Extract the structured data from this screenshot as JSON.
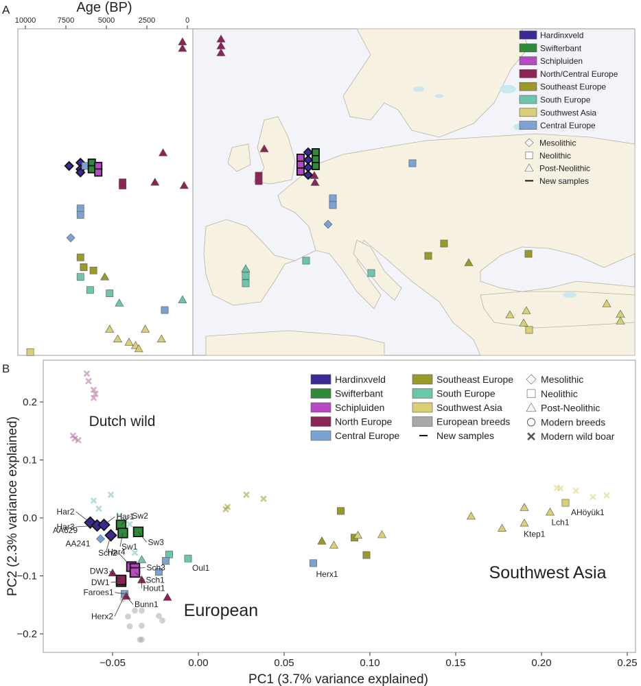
{
  "panels": {
    "a": "A",
    "b": "B"
  },
  "age_axis": {
    "title": "Age (BP)",
    "ticks": [
      10000,
      7500,
      5000,
      2500,
      0
    ]
  },
  "colors": {
    "Hardinxveld": "#3b2a96",
    "Swifterbant": "#2f8a3a",
    "Schipluiden": "#b54ac2",
    "North/Central Europe": "#8d2456",
    "North Europe": "#8d2456",
    "Southeast Europe": "#9a9a2a",
    "South Europe": "#6cc6ac",
    "Southwest Asia": "#d9cf74",
    "Central Europe": "#7aa3d4",
    "European breeds": "#a9a9a9",
    "Dutch wild": "#b06a9a",
    "land": "#f6f1e1",
    "sea": "#f2f4fa",
    "water": "#c8e8f0",
    "border": "#b8b2a3"
  },
  "legend_a": {
    "groups": [
      "Hardinxveld",
      "Swifterbant",
      "Schipluiden",
      "North/Central Europe",
      "Southeast Europe",
      "South Europe",
      "Southwest Asia",
      "Central Europe"
    ],
    "periods": [
      "Mesolithic",
      "Neolithic",
      "Post-Neolithic",
      "New samples"
    ]
  },
  "legend_b": {
    "groups_col1": [
      "Hardinxveld",
      "Swifterbant",
      "Schipluiden",
      "North Europe",
      "Central Europe"
    ],
    "groups_col2": [
      "Southeast Europe",
      "South Europe",
      "Southwest Asia",
      "European breeds",
      "New samples"
    ],
    "periods": [
      "Mesolithic",
      "Neolithic",
      "Post-Neolithic",
      "Modern breeds",
      "Modern wild boar"
    ]
  },
  "region_labels": [
    "Dutch wild",
    "European",
    "Southwest Asia"
  ],
  "chart_data": [
    {
      "type": "scatter",
      "title": "",
      "xlabel": "Age (BP)",
      "xlim": [
        10000,
        0
      ],
      "x_ticks": [
        10000,
        7500,
        5000,
        2500,
        0
      ],
      "points": [
        {
          "age": 7300,
          "group": "Hardinxveld",
          "period": "Mesolithic",
          "row": 0.42,
          "new": true
        },
        {
          "age": 6600,
          "group": "Hardinxveld",
          "period": "Mesolithic",
          "row": 0.41,
          "new": true
        },
        {
          "age": 6600,
          "group": "Hardinxveld",
          "period": "Mesolithic",
          "row": 0.43,
          "new": true
        },
        {
          "age": 6600,
          "group": "Hardinxveld",
          "period": "Mesolithic",
          "row": 0.44,
          "new": true
        },
        {
          "age": 6300,
          "group": "Central Europe",
          "period": "Neolithic",
          "row": 0.42
        },
        {
          "age": 5900,
          "group": "Swifterbant",
          "period": "Neolithic",
          "row": 0.41,
          "new": true
        },
        {
          "age": 5900,
          "group": "Swifterbant",
          "period": "Neolithic",
          "row": 0.43,
          "new": true
        },
        {
          "age": 5500,
          "group": "Schipluiden",
          "period": "Neolithic",
          "row": 0.42,
          "new": true
        },
        {
          "age": 5500,
          "group": "Schipluiden",
          "period": "Neolithic",
          "row": 0.44,
          "new": true
        },
        {
          "age": 4000,
          "group": "North/Central Europe",
          "period": "Neolithic",
          "row": 0.47
        },
        {
          "age": 4000,
          "group": "North/Central Europe",
          "period": "Neolithic",
          "row": 0.48
        },
        {
          "age": 1500,
          "group": "North/Central Europe",
          "period": "Post-Neolithic",
          "row": 0.38
        },
        {
          "age": 2000,
          "group": "North/Central Europe",
          "period": "Post-Neolithic",
          "row": 0.47
        },
        {
          "age": 200,
          "group": "North/Central Europe",
          "period": "Post-Neolithic",
          "row": 0.48
        },
        {
          "age": 300,
          "group": "North/Central Europe",
          "period": "Post-Neolithic",
          "row": 0.04
        },
        {
          "age": 300,
          "group": "North/Central Europe",
          "period": "Post-Neolithic",
          "row": 0.06
        },
        {
          "age": 6600,
          "group": "Central Europe",
          "period": "Neolithic",
          "row": 0.55
        },
        {
          "age": 6600,
          "group": "Central Europe",
          "period": "Neolithic",
          "row": 0.57
        },
        {
          "age": 7200,
          "group": "Central Europe",
          "period": "Mesolithic",
          "row": 0.64
        },
        {
          "age": 6600,
          "group": "Southeast Europe",
          "period": "Neolithic",
          "row": 0.7
        },
        {
          "age": 6400,
          "group": "Southeast Europe",
          "period": "Neolithic",
          "row": 0.73
        },
        {
          "age": 5800,
          "group": "Southeast Europe",
          "period": "Neolithic",
          "row": 0.74
        },
        {
          "age": 5100,
          "group": "Southeast Europe",
          "period": "Post-Neolithic",
          "row": 0.76
        },
        {
          "age": 6600,
          "group": "South Europe",
          "period": "Neolithic",
          "row": 0.76
        },
        {
          "age": 6000,
          "group": "South Europe",
          "period": "Neolithic",
          "row": 0.8
        },
        {
          "age": 4800,
          "group": "South Europe",
          "period": "Neolithic",
          "row": 0.81
        },
        {
          "age": 4200,
          "group": "South Europe",
          "period": "Post-Neolithic",
          "row": 0.84
        },
        {
          "age": 300,
          "group": "South Europe",
          "period": "Post-Neolithic",
          "row": 0.83
        },
        {
          "age": 4800,
          "group": "Southwest Asia",
          "period": "Post-Neolithic",
          "row": 0.92
        },
        {
          "age": 4300,
          "group": "Southwest Asia",
          "period": "Post-Neolithic",
          "row": 0.95
        },
        {
          "age": 3600,
          "group": "Southwest Asia",
          "period": "Post-Neolithic",
          "row": 0.96
        },
        {
          "age": 3200,
          "group": "Southwest Asia",
          "period": "Post-Neolithic",
          "row": 0.97
        },
        {
          "age": 3000,
          "group": "Southwest Asia",
          "period": "Post-Neolithic",
          "row": 0.98
        },
        {
          "age": 2600,
          "group": "Southwest Asia",
          "period": "Post-Neolithic",
          "row": 0.92
        },
        {
          "age": 1600,
          "group": "Southwest Asia",
          "period": "Post-Neolithic",
          "row": 0.95
        },
        {
          "age": 9700,
          "group": "Southwest Asia",
          "period": "Neolithic",
          "row": 0.99
        }
      ]
    },
    {
      "type": "scatter",
      "title": "",
      "xlabel": "PC1 (3.7% variance explained)",
      "ylabel": "PC2 (2.3% variance explained)",
      "xlim": [
        -0.09,
        0.25
      ],
      "ylim": [
        -0.23,
        0.26
      ],
      "x_ticks": [
        -0.05,
        0.0,
        0.05,
        0.1,
        0.15,
        0.2,
        0.25
      ],
      "x_tick_labels": [
        "−0.05",
        "0.00",
        "0.05",
        "0.10",
        "0.15",
        "0.20",
        "0.25"
      ],
      "y_ticks": [
        -0.2,
        -0.1,
        0.0,
        0.1,
        0.2
      ],
      "y_tick_labels": [
        "−0.2",
        "−0.1",
        "0.0",
        "0.1",
        "0.2"
      ],
      "points": [
        {
          "x": -0.063,
          "y": -0.008,
          "group": "Hardinxveld",
          "period": "Mesolithic",
          "label": "Har2",
          "new": true
        },
        {
          "x": -0.059,
          "y": -0.013,
          "group": "Hardinxveld",
          "period": "Mesolithic",
          "label": "Har3",
          "new": true
        },
        {
          "x": -0.055,
          "y": -0.012,
          "group": "Hardinxveld",
          "period": "Mesolithic",
          "label": "Har1",
          "new": true
        },
        {
          "x": -0.051,
          "y": -0.03,
          "group": "Hardinxveld",
          "period": "Mesolithic",
          "label": "Har4",
          "new": true
        },
        {
          "x": -0.057,
          "y": -0.036,
          "group": "Central Europe",
          "period": "Mesolithic",
          "label": "AA241"
        },
        {
          "x": -0.06,
          "y": -0.012,
          "group": "Central Europe",
          "period": "Mesolithic",
          "label": "AA629"
        },
        {
          "x": -0.045,
          "y": -0.012,
          "group": "Swifterbant",
          "period": "Neolithic",
          "label": "Sw2",
          "new": true
        },
        {
          "x": -0.044,
          "y": -0.026,
          "group": "Swifterbant",
          "period": "Neolithic",
          "label": "Sw1",
          "new": true
        },
        {
          "x": -0.035,
          "y": -0.024,
          "group": "Swifterbant",
          "period": "Neolithic",
          "label": "Sw3",
          "new": true
        },
        {
          "x": -0.039,
          "y": -0.084,
          "group": "Schipluiden",
          "period": "Neolithic",
          "label": "Sch2",
          "new": true
        },
        {
          "x": -0.037,
          "y": -0.087,
          "group": "Schipluiden",
          "period": "Neolithic",
          "label": "Sch3",
          "new": true
        },
        {
          "x": -0.037,
          "y": -0.094,
          "group": "Schipluiden",
          "period": "Neolithic",
          "label": "Sch1",
          "new": true
        },
        {
          "x": -0.045,
          "y": -0.11,
          "group": "North Europe",
          "period": "Neolithic",
          "label": "DW1",
          "new": true
        },
        {
          "x": -0.045,
          "y": -0.107,
          "group": "North Europe",
          "period": "Neolithic",
          "label": "DW3",
          "new": true
        },
        {
          "x": -0.033,
          "y": -0.107,
          "group": "North Europe",
          "period": "Post-Neolithic",
          "label": "Hout1"
        },
        {
          "x": -0.043,
          "y": -0.131,
          "group": "Central Europe",
          "period": "Neolithic",
          "label": "Faroes1"
        },
        {
          "x": -0.042,
          "y": -0.135,
          "group": "North Europe",
          "period": "Post-Neolithic",
          "label": "Bunn1"
        },
        {
          "x": -0.044,
          "y": -0.14,
          "group": "European breeds",
          "period": "Modern breeds",
          "label": "Herx2"
        },
        {
          "x": -0.006,
          "y": -0.07,
          "group": "South Europe",
          "period": "Neolithic",
          "label": "Oul1"
        },
        {
          "x": 0.067,
          "y": -0.078,
          "group": "Central Europe",
          "period": "Neolithic",
          "label": "Herx1"
        },
        {
          "x": 0.214,
          "y": 0.026,
          "group": "Southwest Asia",
          "period": "Neolithic",
          "label": "AHöyük1"
        },
        {
          "x": 0.205,
          "y": 0.01,
          "group": "Southwest Asia",
          "period": "Post-Neolithic",
          "label": "Lch1"
        },
        {
          "x": 0.19,
          "y": -0.009,
          "group": "Southwest Asia",
          "period": "Post-Neolithic",
          "label": "Ktep1"
        },
        {
          "x": -0.05,
          "y": -0.095,
          "group": "North Europe",
          "period": "Post-Neolithic"
        },
        {
          "x": -0.023,
          "y": -0.093,
          "group": "Central Europe",
          "period": "Neolithic"
        },
        {
          "x": -0.017,
          "y": -0.063,
          "group": "South Europe",
          "period": "Neolithic"
        },
        {
          "x": -0.019,
          "y": -0.074,
          "group": "Central Europe",
          "period": "Neolithic"
        },
        {
          "x": -0.018,
          "y": -0.137,
          "group": "North Europe",
          "period": "Post-Neolithic"
        },
        {
          "x": -0.033,
          "y": -0.072,
          "group": "South Europe",
          "period": "Post-Neolithic"
        },
        {
          "x": 0.083,
          "y": 0.012,
          "group": "Southeast Europe",
          "period": "Neolithic"
        },
        {
          "x": 0.091,
          "y": -0.034,
          "group": "Southeast Europe",
          "period": "Neolithic"
        },
        {
          "x": 0.098,
          "y": -0.064,
          "group": "Southeast Europe",
          "period": "Neolithic"
        },
        {
          "x": 0.072,
          "y": -0.04,
          "group": "Southeast Europe",
          "period": "Post-Neolithic"
        },
        {
          "x": 0.079,
          "y": -0.047,
          "group": "Southwest Asia",
          "period": "Post-Neolithic"
        },
        {
          "x": 0.093,
          "y": -0.03,
          "group": "Southwest Asia",
          "period": "Post-Neolithic"
        },
        {
          "x": 0.107,
          "y": -0.029,
          "group": "Southwest Asia",
          "period": "Post-Neolithic"
        },
        {
          "x": 0.159,
          "y": 0.003,
          "group": "Southwest Asia",
          "period": "Post-Neolithic"
        },
        {
          "x": 0.177,
          "y": -0.018,
          "group": "Southwest Asia",
          "period": "Post-Neolithic"
        },
        {
          "x": 0.19,
          "y": 0.018,
          "group": "Southwest Asia",
          "period": "Post-Neolithic"
        },
        {
          "x": -0.037,
          "y": -0.16,
          "group": "European breeds",
          "period": "Modern breeds"
        },
        {
          "x": -0.033,
          "y": -0.16,
          "group": "European breeds",
          "period": "Modern breeds"
        },
        {
          "x": -0.041,
          "y": -0.17,
          "group": "European breeds",
          "period": "Modern breeds"
        },
        {
          "x": -0.023,
          "y": -0.169,
          "group": "European breeds",
          "period": "Modern breeds"
        },
        {
          "x": -0.04,
          "y": -0.187,
          "group": "European breeds",
          "period": "Modern breeds"
        },
        {
          "x": -0.033,
          "y": -0.186,
          "group": "European breeds",
          "period": "Modern breeds"
        },
        {
          "x": -0.021,
          "y": -0.177,
          "group": "European breeds",
          "period": "Modern breeds"
        },
        {
          "x": -0.034,
          "y": -0.21,
          "group": "European breeds",
          "period": "Modern breeds"
        },
        {
          "x": -0.033,
          "y": -0.21,
          "group": "European breeds",
          "period": "Modern breeds"
        },
        {
          "x": -0.065,
          "y": 0.249,
          "group": "Dutch wild",
          "period": "Modern wild boar"
        },
        {
          "x": -0.064,
          "y": 0.236,
          "group": "Dutch wild",
          "period": "Modern wild boar"
        },
        {
          "x": -0.061,
          "y": 0.221,
          "group": "Dutch wild",
          "period": "Modern wild boar"
        },
        {
          "x": -0.06,
          "y": 0.214,
          "group": "Dutch wild",
          "period": "Modern wild boar"
        },
        {
          "x": -0.061,
          "y": 0.207,
          "group": "Dutch wild",
          "period": "Modern wild boar"
        },
        {
          "x": -0.073,
          "y": 0.142,
          "group": "Dutch wild",
          "period": "Modern wild boar"
        },
        {
          "x": -0.072,
          "y": 0.137,
          "group": "Dutch wild",
          "period": "Modern wild boar"
        },
        {
          "x": -0.07,
          "y": 0.134,
          "group": "Dutch wild",
          "period": "Modern wild boar"
        },
        {
          "x": -0.061,
          "y": 0.03,
          "group": "South Europe",
          "period": "Modern wild boar"
        },
        {
          "x": -0.058,
          "y": 0.016,
          "group": "South Europe",
          "period": "Modern wild boar"
        },
        {
          "x": -0.051,
          "y": 0.04,
          "group": "South Europe",
          "period": "Modern wild boar"
        },
        {
          "x": -0.046,
          "y": 0.004,
          "group": "South Europe",
          "period": "Modern wild boar"
        },
        {
          "x": -0.04,
          "y": -0.011,
          "group": "South Europe",
          "period": "Modern wild boar"
        },
        {
          "x": -0.037,
          "y": -0.06,
          "group": "South Europe",
          "period": "Modern wild boar"
        },
        {
          "x": 0.016,
          "y": 0.015,
          "group": "Southeast Europe",
          "period": "Modern wild boar"
        },
        {
          "x": 0.017,
          "y": 0.019,
          "group": "Southeast Europe",
          "period": "Modern wild boar"
        },
        {
          "x": 0.028,
          "y": 0.04,
          "group": "Southeast Europe",
          "period": "Modern wild boar"
        },
        {
          "x": 0.038,
          "y": 0.033,
          "group": "Southeast Europe",
          "period": "Modern wild boar"
        },
        {
          "x": 0.209,
          "y": 0.052,
          "group": "Southwest Asia",
          "period": "Modern wild boar"
        },
        {
          "x": 0.211,
          "y": 0.051,
          "group": "Southwest Asia",
          "period": "Modern wild boar"
        },
        {
          "x": 0.22,
          "y": 0.047,
          "group": "Southwest Asia",
          "period": "Modern wild boar"
        },
        {
          "x": 0.23,
          "y": 0.036,
          "group": "Southwest Asia",
          "period": "Modern wild boar"
        },
        {
          "x": 0.238,
          "y": 0.039,
          "group": "Southwest Asia",
          "period": "Modern wild boar"
        }
      ]
    }
  ]
}
